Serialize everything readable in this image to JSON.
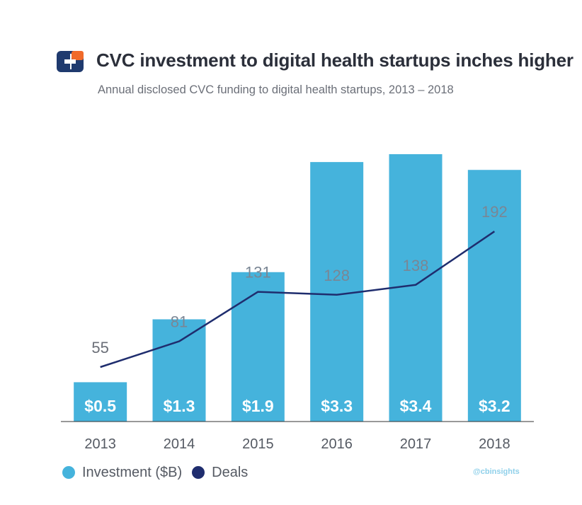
{
  "header": {
    "title": "CVC investment to digital health startups inches higher",
    "subtitle": "Annual disclosed CVC funding to digital health startups, 2013 – 2018"
  },
  "brand": {
    "logo_icon": "cb-insights-logo-icon",
    "watermark": "@cbinsights"
  },
  "colors": {
    "bar": "#45b3dc",
    "line": "#1f2d6e",
    "logo_blue": "#1f3a6e",
    "logo_orange": "#f06a2a",
    "text": "#555a63"
  },
  "legend": [
    {
      "label": "Investment ($B)",
      "color": "#45b3dc"
    },
    {
      "label": "Deals",
      "color": "#1f2d6e"
    }
  ],
  "chart_data": {
    "type": "bar",
    "categories": [
      "2013",
      "2014",
      "2015",
      "2016",
      "2017",
      "2018"
    ],
    "series": [
      {
        "name": "Investment ($B)",
        "kind": "bar",
        "values": [
          0.5,
          1.3,
          1.9,
          3.3,
          3.4,
          3.2
        ],
        "labels": [
          "$0.5",
          "$1.3",
          "$1.9",
          "$3.3",
          "$3.4",
          "$3.2"
        ]
      },
      {
        "name": "Deals",
        "kind": "line",
        "values": [
          55,
          81,
          131,
          128,
          138,
          192
        ],
        "labels": [
          "55",
          "81",
          "131",
          "128",
          "138",
          "192"
        ]
      }
    ],
    "title": "CVC investment to digital health startups inches higher",
    "subtitle": "Annual disclosed CVC funding to digital health startups, 2013 – 2018",
    "xlabel": "",
    "ylabel": "",
    "ylim_investment": [
      0,
      3.4
    ],
    "ylim_deals": [
      0,
      270
    ],
    "grid": false,
    "legend_position": "bottom-left"
  }
}
